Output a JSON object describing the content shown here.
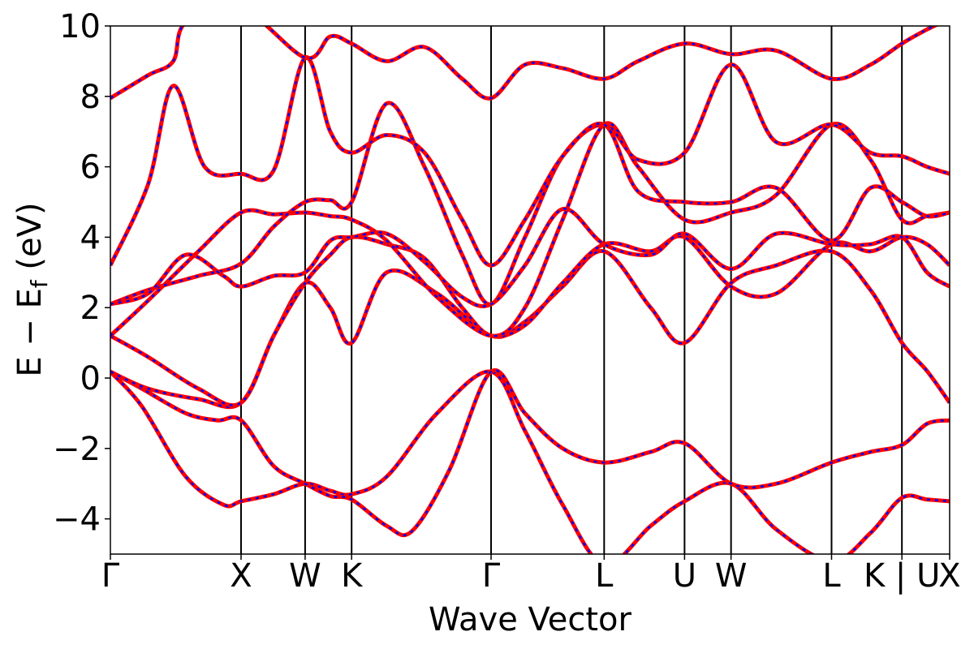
{
  "chart_data": {
    "type": "line",
    "xlabel": "Wave Vector",
    "ylabel": {
      "main": "E − E",
      "sub": "f",
      "unit": " (eV)"
    },
    "ylim": [
      -5,
      10
    ],
    "yticks": [
      "−4",
      "−2",
      "0",
      "2",
      "4",
      "6",
      "8",
      "10"
    ],
    "ytick_values": [
      -4,
      -2,
      0,
      2,
      4,
      6,
      8,
      10
    ],
    "xlim": [
      0,
      6.68
    ],
    "kpoints": [
      {
        "label": "Γ",
        "x": 0.0
      },
      {
        "label": "X",
        "x": 1.04
      },
      {
        "label": "W",
        "x": 1.55
      },
      {
        "label": "K",
        "x": 1.92
      },
      {
        "label": "Γ",
        "x": 3.03
      },
      {
        "label": "L",
        "x": 3.93
      },
      {
        "label": "U",
        "x": 4.57
      },
      {
        "label": "W",
        "x": 4.94
      },
      {
        "label": "L",
        "x": 5.74
      },
      {
        "label": "K | U",
        "x": 6.3
      },
      {
        "label": "X",
        "x": 6.68
      }
    ],
    "series_style": [
      {
        "color": "#ff0000",
        "dash": "solid"
      },
      {
        "color": "#0000ff",
        "dash": "dashed"
      }
    ],
    "bands": [
      [
        [
          0,
          0.18
        ],
        [
          0.25,
          -0.8
        ],
        [
          0.6,
          -2.8
        ],
        [
          0.9,
          -3.6
        ],
        [
          1.04,
          -3.5
        ],
        [
          1.3,
          -3.3
        ],
        [
          1.55,
          -3.0
        ],
        [
          1.75,
          -3.2
        ],
        [
          1.92,
          -3.3
        ],
        [
          2.2,
          -2.8
        ],
        [
          2.6,
          -1.0
        ],
        [
          3.03,
          0.18
        ],
        [
          3.3,
          -1.5
        ],
        [
          3.6,
          -3.6
        ],
        [
          3.93,
          -5.3
        ],
        [
          4.3,
          -4.2
        ],
        [
          4.57,
          -3.5
        ],
        [
          4.94,
          -3.0
        ],
        [
          5.3,
          -4.3
        ],
        [
          5.74,
          -5.2
        ],
        [
          6.05,
          -4.4
        ],
        [
          6.3,
          -3.4
        ],
        [
          6.5,
          -3.45
        ],
        [
          6.68,
          -3.5
        ]
      ],
      [
        [
          0,
          0.18
        ],
        [
          0.25,
          -0.3
        ],
        [
          0.6,
          -1.0
        ],
        [
          0.85,
          -1.2
        ],
        [
          1.04,
          -1.2
        ],
        [
          1.3,
          -2.5
        ],
        [
          1.55,
          -3.0
        ],
        [
          1.75,
          -3.35
        ],
        [
          1.92,
          -3.45
        ],
        [
          2.2,
          -4.2
        ],
        [
          2.4,
          -4.35
        ],
        [
          2.7,
          -2.6
        ],
        [
          3.03,
          0.18
        ],
        [
          3.3,
          -1.0
        ],
        [
          3.6,
          -2.0
        ],
        [
          3.93,
          -2.4
        ],
        [
          4.3,
          -2.1
        ],
        [
          4.57,
          -1.85
        ],
        [
          4.94,
          -3.0
        ],
        [
          5.3,
          -3.0
        ],
        [
          5.74,
          -2.4
        ],
        [
          6.05,
          -2.1
        ],
        [
          6.3,
          -1.9
        ],
        [
          6.5,
          -1.3
        ],
        [
          6.68,
          -1.2
        ]
      ],
      [
        [
          0,
          0.18
        ],
        [
          0.3,
          -0.3
        ],
        [
          0.7,
          -0.6
        ],
        [
          1.04,
          -0.7
        ],
        [
          1.3,
          1.2
        ],
        [
          1.55,
          2.7
        ],
        [
          1.75,
          2.0
        ],
        [
          1.92,
          1.0
        ],
        [
          2.2,
          3.0
        ],
        [
          2.6,
          2.4
        ],
        [
          3.03,
          1.2
        ],
        [
          3.3,
          1.6
        ],
        [
          3.6,
          2.6
        ],
        [
          3.93,
          3.6
        ],
        [
          4.3,
          2.0
        ],
        [
          4.57,
          1.0
        ],
        [
          4.94,
          2.7
        ],
        [
          5.3,
          3.2
        ],
        [
          5.74,
          3.6
        ],
        [
          6.05,
          2.5
        ],
        [
          6.3,
          1.0
        ],
        [
          6.5,
          0.2
        ],
        [
          6.68,
          -0.7
        ]
      ],
      [
        [
          0,
          1.2
        ],
        [
          0.3,
          0.6
        ],
        [
          0.7,
          -0.3
        ],
        [
          1.04,
          -0.7
        ],
        [
          1.3,
          1.2
        ],
        [
          1.55,
          2.7
        ],
        [
          1.75,
          3.5
        ],
        [
          1.92,
          4.0
        ],
        [
          2.2,
          3.8
        ],
        [
          2.5,
          3.4
        ],
        [
          2.8,
          2.0
        ],
        [
          3.03,
          1.2
        ],
        [
          3.3,
          1.5
        ],
        [
          3.6,
          2.7
        ],
        [
          3.93,
          3.8
        ],
        [
          4.3,
          3.6
        ],
        [
          4.57,
          4.0
        ],
        [
          4.94,
          2.6
        ],
        [
          5.3,
          2.4
        ],
        [
          5.74,
          3.8
        ],
        [
          6.05,
          3.6
        ],
        [
          6.3,
          4.0
        ],
        [
          6.5,
          3.8
        ],
        [
          6.68,
          3.2
        ]
      ],
      [
        [
          0,
          1.2
        ],
        [
          0.3,
          2.2
        ],
        [
          0.7,
          3.6
        ],
        [
          1.04,
          4.7
        ],
        [
          1.3,
          4.65
        ],
        [
          1.55,
          4.7
        ],
        [
          1.75,
          4.6
        ],
        [
          1.92,
          4.5
        ],
        [
          2.2,
          3.9
        ],
        [
          2.6,
          2.3
        ],
        [
          3.03,
          1.2
        ],
        [
          3.3,
          2.0
        ],
        [
          3.6,
          4.5
        ],
        [
          3.93,
          7.2
        ],
        [
          4.2,
          6.0
        ],
        [
          4.57,
          4.5
        ],
        [
          4.94,
          4.7
        ],
        [
          5.3,
          5.2
        ],
        [
          5.74,
          7.2
        ],
        [
          6.05,
          6.2
        ],
        [
          6.3,
          4.5
        ],
        [
          6.5,
          4.6
        ],
        [
          6.68,
          4.7
        ]
      ],
      [
        [
          0,
          2.1
        ],
        [
          0.3,
          2.5
        ],
        [
          0.7,
          2.9
        ],
        [
          1.04,
          3.25
        ],
        [
          1.3,
          4.3
        ],
        [
          1.55,
          5.0
        ],
        [
          1.75,
          5.05
        ],
        [
          1.92,
          5.0
        ],
        [
          2.2,
          7.8
        ],
        [
          2.5,
          6.0
        ],
        [
          2.8,
          3.5
        ],
        [
          3.03,
          2.1
        ],
        [
          3.3,
          4.0
        ],
        [
          3.6,
          6.3
        ],
        [
          3.93,
          7.2
        ],
        [
          4.2,
          6.2
        ],
        [
          4.57,
          6.4
        ],
        [
          4.94,
          8.9
        ],
        [
          5.3,
          6.7
        ],
        [
          5.74,
          7.2
        ],
        [
          6.05,
          6.4
        ],
        [
          6.3,
          6.3
        ],
        [
          6.5,
          6.0
        ],
        [
          6.68,
          5.8
        ]
      ],
      [
        [
          0,
          2.1
        ],
        [
          0.3,
          2.4
        ],
        [
          0.6,
          3.5
        ],
        [
          0.9,
          2.9
        ],
        [
          1.04,
          2.6
        ],
        [
          1.3,
          2.9
        ],
        [
          1.55,
          3.0
        ],
        [
          1.75,
          3.9
        ],
        [
          1.92,
          4.0
        ],
        [
          2.2,
          4.1
        ],
        [
          2.5,
          3.3
        ],
        [
          2.8,
          2.3
        ],
        [
          3.03,
          2.1
        ],
        [
          3.3,
          3.2
        ],
        [
          3.6,
          4.8
        ],
        [
          3.93,
          3.8
        ],
        [
          4.3,
          3.5
        ],
        [
          4.57,
          4.1
        ],
        [
          4.94,
          3.1
        ],
        [
          5.3,
          4.1
        ],
        [
          5.74,
          3.8
        ],
        [
          6.05,
          3.8
        ],
        [
          6.3,
          4.0
        ],
        [
          6.5,
          3.0
        ],
        [
          6.68,
          2.6
        ]
      ],
      [
        [
          0,
          3.2
        ],
        [
          0.3,
          5.5
        ],
        [
          0.5,
          8.3
        ],
        [
          0.75,
          6.0
        ],
        [
          1.04,
          5.8
        ],
        [
          1.3,
          5.9
        ],
        [
          1.55,
          9.1
        ],
        [
          1.75,
          7.0
        ],
        [
          1.92,
          6.4
        ],
        [
          2.2,
          6.9
        ],
        [
          2.5,
          6.4
        ],
        [
          2.8,
          4.5
        ],
        [
          3.03,
          3.2
        ],
        [
          3.3,
          4.5
        ],
        [
          3.6,
          6.3
        ],
        [
          3.93,
          7.2
        ],
        [
          4.2,
          5.3
        ],
        [
          4.57,
          5.0
        ],
        [
          4.94,
          5.0
        ],
        [
          5.3,
          5.4
        ],
        [
          5.74,
          3.9
        ],
        [
          6.05,
          5.4
        ],
        [
          6.3,
          5.0
        ],
        [
          6.5,
          4.6
        ],
        [
          6.68,
          4.7
        ]
      ],
      [
        [
          0,
          7.95
        ],
        [
          0.3,
          8.6
        ],
        [
          0.5,
          9.0
        ],
        [
          0.6,
          10.1
        ],
        [
          1.04,
          10.5
        ],
        [
          1.55,
          9.1
        ],
        [
          1.75,
          9.7
        ],
        [
          1.92,
          9.5
        ],
        [
          2.2,
          9.0
        ],
        [
          2.5,
          9.4
        ],
        [
          2.8,
          8.5
        ],
        [
          3.03,
          7.95
        ],
        [
          3.3,
          8.9
        ],
        [
          3.6,
          8.8
        ],
        [
          3.93,
          8.5
        ],
        [
          4.2,
          9.0
        ],
        [
          4.57,
          9.5
        ],
        [
          4.94,
          9.2
        ],
        [
          5.3,
          9.3
        ],
        [
          5.74,
          8.5
        ],
        [
          6.05,
          8.9
        ],
        [
          6.3,
          9.5
        ],
        [
          6.5,
          9.9
        ],
        [
          6.68,
          10.2
        ]
      ]
    ]
  }
}
